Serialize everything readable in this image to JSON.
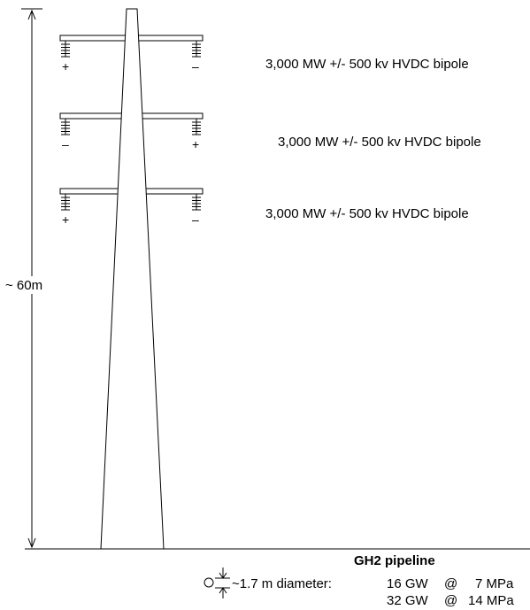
{
  "tower": {
    "height_label": "~ 60m",
    "circuits": [
      {
        "label": "3,000 MW +/- 500 kv HVDC bipole",
        "left_sign": "+",
        "right_sign": "–"
      },
      {
        "label": "3,000 MW +/- 500 kv HVDC bipole",
        "left_sign": "–",
        "right_sign": "+"
      },
      {
        "label": "3,000 MW +/- 500 kv HVDC bipole",
        "left_sign": "+",
        "right_sign": "–"
      }
    ]
  },
  "pipeline": {
    "title": "GH2 pipeline",
    "diameter_label": "~1.7 m diameter:",
    "capacities": [
      {
        "power": "16 GW",
        "at": "@",
        "pressure": "7 MPa"
      },
      {
        "power": "32 GW",
        "at": "@",
        "pressure": "14 MPa"
      }
    ]
  }
}
